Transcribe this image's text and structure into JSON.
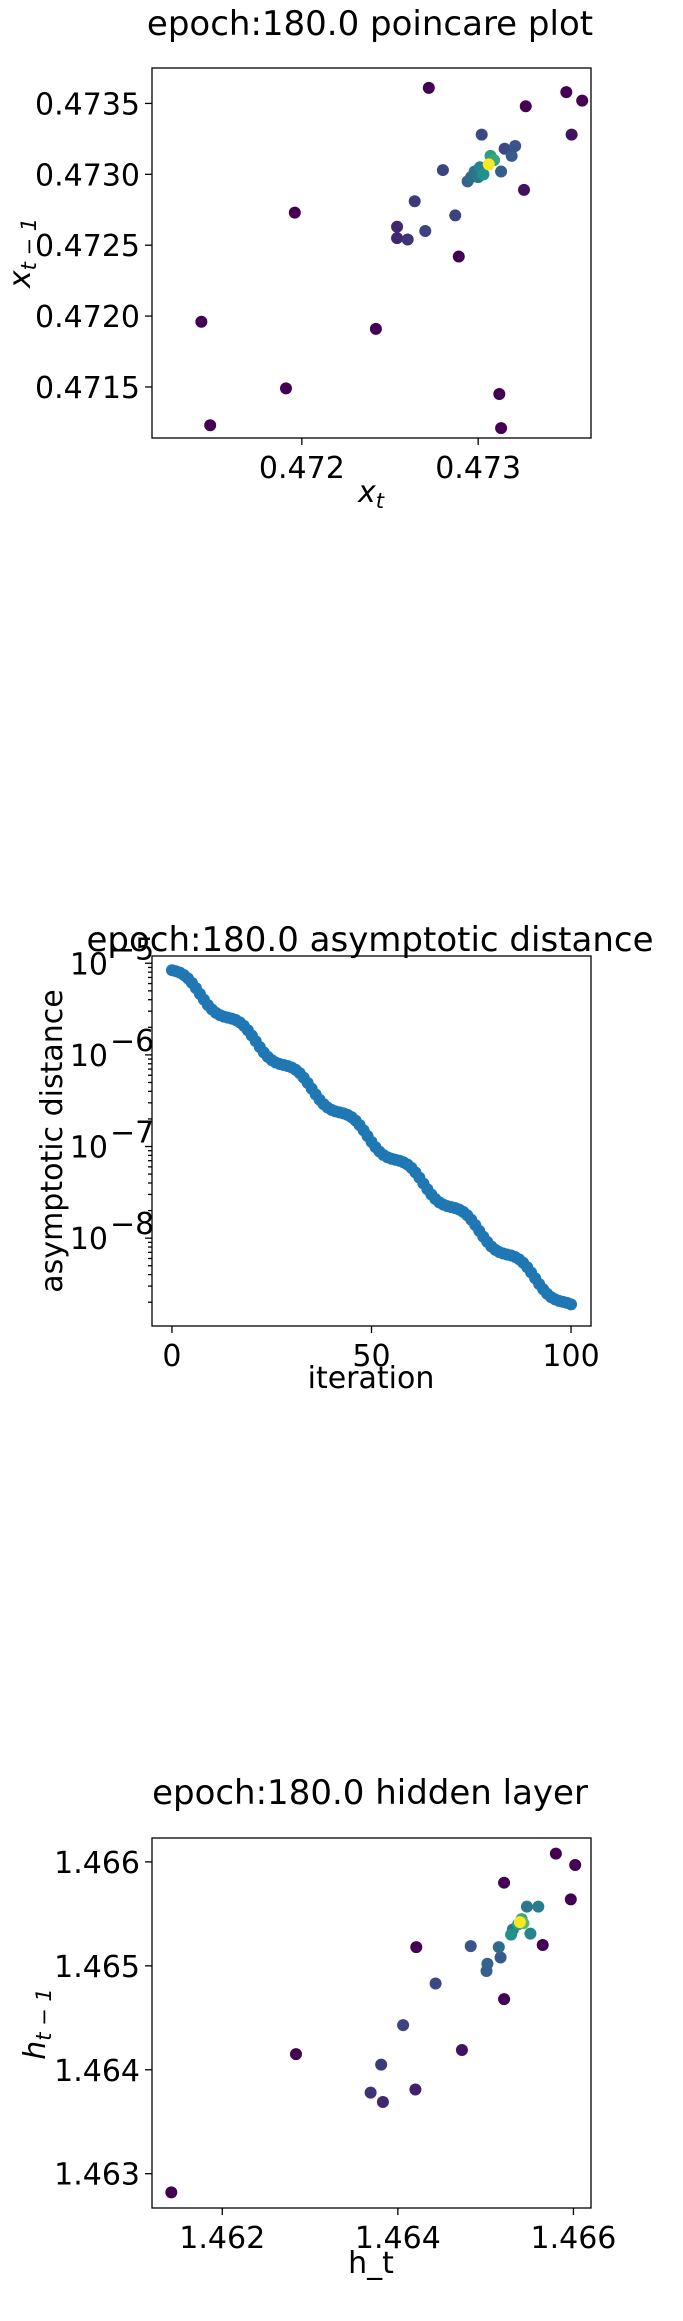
{
  "chart_data": [
    {
      "type": "scatter",
      "title": "epoch:180.0 poincare plot",
      "xlabel": "x_t",
      "ylabel": "x_{t-1}",
      "xlim": [
        0.47115,
        0.47364
      ],
      "ylim": [
        0.47114,
        0.47375
      ],
      "x_ticks": [
        0.472,
        0.473
      ],
      "x_tick_labels": [
        "0.472",
        "0.473"
      ],
      "y_ticks": [
        0.4715,
        0.472,
        0.4725,
        0.473,
        0.4735
      ],
      "y_tick_labels": [
        "0.4715",
        "0.4720",
        "0.4725",
        "0.4730",
        "0.4735"
      ],
      "colormap": "viridis",
      "points": [
        {
          "x": 0.47312,
          "y": 0.47145,
          "c": 0.0
        },
        {
          "x": 0.47313,
          "y": 0.47121,
          "c": 0.0
        },
        {
          "x": 0.47148,
          "y": 0.47123,
          "c": 0.0
        },
        {
          "x": 0.47143,
          "y": 0.47196,
          "c": 0.0
        },
        {
          "x": 0.47191,
          "y": 0.47149,
          "c": 0.0
        },
        {
          "x": 0.47196,
          "y": 0.47273,
          "c": 0.0
        },
        {
          "x": 0.47242,
          "y": 0.47191,
          "c": 0.0
        },
        {
          "x": 0.47289,
          "y": 0.47242,
          "c": 0.0
        },
        {
          "x": 0.47272,
          "y": 0.47361,
          "c": 0.0
        },
        {
          "x": 0.4735,
          "y": 0.47358,
          "c": 0.0
        },
        {
          "x": 0.47359,
          "y": 0.47352,
          "c": 0.0
        },
        {
          "x": 0.47327,
          "y": 0.47348,
          "c": 0.0
        },
        {
          "x": 0.47353,
          "y": 0.47328,
          "c": 0.05
        },
        {
          "x": 0.47326,
          "y": 0.47289,
          "c": 0.05
        },
        {
          "x": 0.47254,
          "y": 0.47263,
          "c": 0.12
        },
        {
          "x": 0.47254,
          "y": 0.47255,
          "c": 0.12
        },
        {
          "x": 0.4726,
          "y": 0.47254,
          "c": 0.15
        },
        {
          "x": 0.47264,
          "y": 0.47281,
          "c": 0.18
        },
        {
          "x": 0.4727,
          "y": 0.4726,
          "c": 0.2
        },
        {
          "x": 0.4728,
          "y": 0.47303,
          "c": 0.2
        },
        {
          "x": 0.47287,
          "y": 0.47271,
          "c": 0.2
        },
        {
          "x": 0.47302,
          "y": 0.47328,
          "c": 0.22
        },
        {
          "x": 0.47315,
          "y": 0.47318,
          "c": 0.22
        },
        {
          "x": 0.47321,
          "y": 0.4732,
          "c": 0.25
        },
        {
          "x": 0.47319,
          "y": 0.47313,
          "c": 0.28
        },
        {
          "x": 0.47313,
          "y": 0.47302,
          "c": 0.3
        },
        {
          "x": 0.47294,
          "y": 0.47295,
          "c": 0.32
        },
        {
          "x": 0.47296,
          "y": 0.47298,
          "c": 0.35
        },
        {
          "x": 0.47298,
          "y": 0.47302,
          "c": 0.38
        },
        {
          "x": 0.473,
          "y": 0.47298,
          "c": 0.4
        },
        {
          "x": 0.47301,
          "y": 0.47305,
          "c": 0.45
        },
        {
          "x": 0.47303,
          "y": 0.473,
          "c": 0.5
        },
        {
          "x": 0.47307,
          "y": 0.47313,
          "c": 0.55
        },
        {
          "x": 0.47309,
          "y": 0.4731,
          "c": 0.6
        },
        {
          "x": 0.47306,
          "y": 0.47307,
          "c": 1.0
        }
      ]
    },
    {
      "type": "scatter",
      "title": "epoch:180.0 asymptotic distance",
      "xlabel": "iteration",
      "ylabel": "asymptotic distance",
      "yscale": "log",
      "xlim": [
        -5,
        105
      ],
      "ylim": [
        1.1e-09,
        1.2e-05
      ],
      "x_ticks": [
        0,
        50,
        100
      ],
      "x_tick_labels": [
        "0",
        "50",
        "100"
      ],
      "y_ticks": [
        1e-08,
        1e-07,
        1e-06,
        1e-05
      ],
      "y_tick_labels": [
        "10",
        "10",
        "10",
        "10"
      ],
      "y_tick_exponents": [
        "−8",
        "−7",
        "−6",
        "−5"
      ],
      "color": "#1f77b4",
      "x_range": [
        0,
        100
      ],
      "y_start": 8.4e-06,
      "y_end": 1.7e-09
    },
    {
      "type": "scatter",
      "title": "epoch:180.0 hidden layer",
      "xlabel": "h_t",
      "ylabel": "h_{t-1}",
      "xlim": [
        1.4612,
        1.4662
      ],
      "ylim": [
        1.46267,
        1.46623
      ],
      "x_ticks": [
        1.462,
        1.464,
        1.466
      ],
      "x_tick_labels": [
        "1.462",
        "1.464",
        "1.466"
      ],
      "y_ticks": [
        1.463,
        1.464,
        1.465,
        1.466
      ],
      "y_tick_labels": [
        "1.463",
        "1.464",
        "1.465",
        "1.466"
      ],
      "colormap": "viridis",
      "points": [
        {
          "x": 1.46142,
          "y": 1.46282,
          "c": 0.0
        },
        {
          "x": 1.46284,
          "y": 1.46415,
          "c": 0.0
        },
        {
          "x": 1.46421,
          "y": 1.46518,
          "c": 0.0
        },
        {
          "x": 1.46521,
          "y": 1.4658,
          "c": 0.0
        },
        {
          "x": 1.4658,
          "y": 1.46608,
          "c": 0.0
        },
        {
          "x": 1.46602,
          "y": 1.46597,
          "c": 0.0
        },
        {
          "x": 1.46597,
          "y": 1.46564,
          "c": 0.0
        },
        {
          "x": 1.46565,
          "y": 1.4652,
          "c": 0.0
        },
        {
          "x": 1.46521,
          "y": 1.46468,
          "c": 0.0
        },
        {
          "x": 1.46473,
          "y": 1.46419,
          "c": 0.05
        },
        {
          "x": 1.4642,
          "y": 1.46381,
          "c": 0.1
        },
        {
          "x": 1.46383,
          "y": 1.46369,
          "c": 0.12
        },
        {
          "x": 1.46369,
          "y": 1.46378,
          "c": 0.15
        },
        {
          "x": 1.46381,
          "y": 1.46405,
          "c": 0.18
        },
        {
          "x": 1.46406,
          "y": 1.46443,
          "c": 0.2
        },
        {
          "x": 1.46443,
          "y": 1.46483,
          "c": 0.22
        },
        {
          "x": 1.46483,
          "y": 1.46519,
          "c": 0.25
        },
        {
          "x": 1.46517,
          "y": 1.46508,
          "c": 0.28
        },
        {
          "x": 1.46501,
          "y": 1.46495,
          "c": 0.3
        },
        {
          "x": 1.46502,
          "y": 1.46502,
          "c": 0.32
        },
        {
          "x": 1.46515,
          "y": 1.46518,
          "c": 0.35
        },
        {
          "x": 1.46531,
          "y": 1.46535,
          "c": 0.38
        },
        {
          "x": 1.46547,
          "y": 1.46557,
          "c": 0.4
        },
        {
          "x": 1.4656,
          "y": 1.46557,
          "c": 0.42
        },
        {
          "x": 1.46551,
          "y": 1.46531,
          "c": 0.45
        },
        {
          "x": 1.46529,
          "y": 1.4653,
          "c": 0.5
        },
        {
          "x": 1.46537,
          "y": 1.4654,
          "c": 0.55
        },
        {
          "x": 1.46541,
          "y": 1.46545,
          "c": 0.6
        },
        {
          "x": 1.46543,
          "y": 1.46541,
          "c": 0.7
        },
        {
          "x": 1.46539,
          "y": 1.46542,
          "c": 1.0
        }
      ]
    }
  ]
}
